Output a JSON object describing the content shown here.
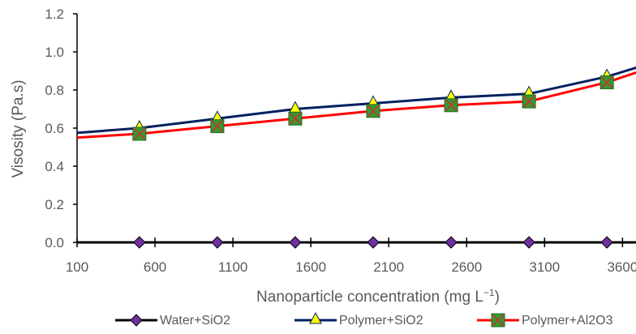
{
  "chart_data": {
    "type": "line",
    "title": "",
    "xlabel": "Nanoparticle concentration (mg L",
    "xlabel_sup": "−1",
    "xlabel_end": ")",
    "ylabel": "Visosity (Pa.s)",
    "xlim": [
      100,
      3900
    ],
    "ylim": [
      0.0,
      1.2
    ],
    "xticks": [
      "100",
      "600",
      "1100",
      "1600",
      "2100",
      "2600",
      "3100",
      "3600"
    ],
    "yticks": [
      "0.0",
      "0.2",
      "0.4",
      "0.6",
      "0.8",
      "1.0",
      "1.2"
    ],
    "grid": false,
    "legend_position": "bottom",
    "series": [
      {
        "name": "Water+SiO2",
        "color": "#000000",
        "marker": "diamond",
        "marker_color": "#7030a0",
        "line_points": {
          "x": [
            100,
            3900
          ],
          "y": [
            0.0,
            0.0
          ]
        },
        "markers": {
          "x": [
            500,
            1000,
            1500,
            2000,
            2500,
            3000,
            3500
          ],
          "y": [
            0.0,
            0.0,
            0.0,
            0.0,
            0.0,
            0.0,
            0.0
          ]
        }
      },
      {
        "name": "Polymer+SiO2",
        "color": "#002060",
        "marker": "triangle",
        "marker_color": "#ffff00",
        "line_points": {
          "x": [
            100,
            500,
            1000,
            1500,
            2000,
            2500,
            3000,
            3500,
            3900
          ],
          "y": [
            0.575,
            0.6,
            0.65,
            0.7,
            0.73,
            0.76,
            0.78,
            0.87,
            0.97
          ]
        },
        "markers": {
          "x": [
            500,
            1000,
            1500,
            2000,
            2500,
            3000,
            3500
          ],
          "y": [
            0.6,
            0.65,
            0.7,
            0.73,
            0.76,
            0.78,
            0.87
          ]
        }
      },
      {
        "name": "Polymer+Al2O3",
        "color": "#ff0000",
        "marker": "x-square",
        "marker_color": "#339933",
        "line_points": {
          "x": [
            100,
            500,
            1000,
            1500,
            2000,
            2500,
            3000,
            3500,
            3900
          ],
          "y": [
            0.55,
            0.57,
            0.61,
            0.65,
            0.69,
            0.72,
            0.74,
            0.84,
            0.95
          ]
        },
        "markers": {
          "x": [
            500,
            1000,
            1500,
            2000,
            2500,
            3000,
            3500
          ],
          "y": [
            0.57,
            0.61,
            0.65,
            0.69,
            0.72,
            0.74,
            0.84
          ]
        }
      }
    ]
  }
}
